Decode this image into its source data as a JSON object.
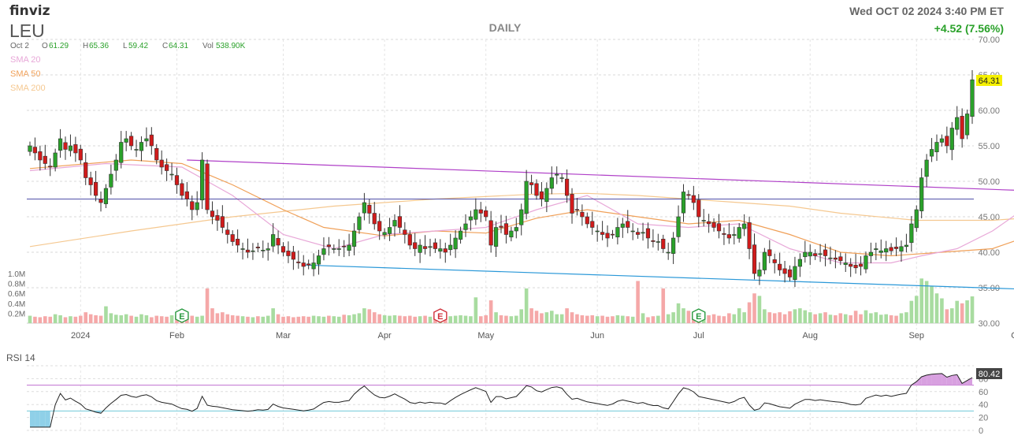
{
  "header": {
    "logo": "finviz",
    "ticker": "LEU",
    "period": "DAILY",
    "datetime": "Wed OCT 02 2024 3:40 PM ET",
    "change": "+4.52 (7.56%)"
  },
  "ohlc": {
    "date_label": "Oct 2",
    "o_label": "O",
    "o_value": "61.29",
    "h_label": "H",
    "h_value": "65.36",
    "l_label": "L",
    "l_value": "59.42",
    "c_label": "C",
    "c_value": "64.31",
    "vol_label": "Vol",
    "vol_value": "538.90K"
  },
  "legend": [
    {
      "label": "SMA 20",
      "color": "#e8a8d8"
    },
    {
      "label": "SMA 50",
      "color": "#f0a058"
    },
    {
      "label": "SMA 200",
      "color": "#f5c890"
    }
  ],
  "last_price_label": "64.31",
  "earnings_marker": "E",
  "rsi": {
    "label": "RSI 14",
    "last": "80.42",
    "ticks": [
      "80",
      "60",
      "40",
      "20",
      "0"
    ]
  },
  "colors": {
    "up": "#2aa12a",
    "down": "#d11b1b",
    "vol_up": "#a8dca0",
    "vol_down": "#f5a8a8",
    "trend_upper": "#b040c8",
    "trend_lower": "#2a98d8",
    "support": "#5050a8",
    "price_box": "#f5f000",
    "change": "#2aa12a",
    "rsi_overbought": "#c070d0",
    "rsi_oversold": "#6fc8d8"
  },
  "chart_data": {
    "type": "candlestick",
    "x_labels": [
      "2024",
      "Feb",
      "Mar",
      "Apr",
      "May",
      "Jun",
      "Jul",
      "Aug",
      "Sep",
      "Oct"
    ],
    "y_ticks": [
      "70.00",
      "65.00",
      "60.00",
      "55.00",
      "50.00",
      "45.00",
      "40.00",
      "35.00",
      "30.00"
    ],
    "ylim": [
      30,
      70
    ],
    "volume_ticks": [
      "1.0M",
      "0.8M",
      "0.6M",
      "0.4M",
      "0.2M"
    ],
    "close": [
      55.0,
      54.0,
      53.0,
      52.5,
      52.0,
      54.0,
      56.0,
      54.5,
      55.0,
      54.0,
      53.0,
      50.5,
      49.5,
      48.0,
      47.0,
      49.0,
      51.0,
      53.0,
      55.5,
      56.0,
      55.0,
      54.5,
      55.5,
      56.0,
      55.0,
      53.0,
      52.0,
      51.5,
      51.0,
      49.5,
      48.0,
      47.5,
      46.0,
      47.0,
      53.0,
      46.0,
      45.0,
      44.5,
      43.5,
      42.5,
      41.5,
      41.0,
      40.5,
      40.0,
      40.2,
      40.6,
      40.3,
      40.5,
      42.5,
      41.0,
      40.0,
      39.5,
      39.0,
      38.5,
      38.0,
      38.2,
      38.5,
      39.5,
      40.5,
      40.8,
      40.5,
      40.5,
      40.8,
      41.0,
      43.0,
      45.0,
      47.0,
      45.5,
      44.0,
      43.0,
      42.8,
      43.5,
      44.5,
      43.5,
      42.5,
      41.0,
      40.5,
      41.0,
      40.5,
      40.8,
      40.5,
      40.5,
      40.0,
      41.0,
      42.0,
      43.0,
      44.0,
      45.0,
      46.0,
      45.5,
      45.0,
      41.0,
      43.5,
      43.5,
      42.5,
      43.0,
      43.5,
      46.0,
      50.0,
      49.5,
      48.0,
      47.5,
      49.0,
      50.5,
      51.0,
      50.5,
      48.0,
      45.5,
      46.0,
      45.0,
      44.0,
      43.5,
      43.0,
      42.5,
      42.0,
      42.5,
      43.5,
      44.0,
      43.5,
      43.0,
      42.5,
      42.8,
      42.0,
      41.5,
      41.5,
      40.5,
      40.0,
      42.0,
      45.0,
      48.5,
      48.0,
      47.0,
      45.0,
      44.5,
      44.0,
      43.5,
      43.0,
      42.5,
      42.0,
      42.5,
      43.5,
      44.0,
      40.5,
      37.0,
      37.5,
      40.0,
      39.5,
      38.5,
      37.5,
      37.0,
      36.5,
      38.0,
      39.0,
      40.0,
      40.0,
      39.5,
      39.8,
      39.5,
      39.2,
      39.0,
      38.8,
      38.5,
      38.0,
      37.8,
      38.0,
      39.5,
      40.0,
      40.5,
      40.2,
      40.5,
      40.2,
      40.5,
      40.8,
      41.0,
      44.0,
      46.0,
      50.5,
      53.0,
      54.5,
      55.5,
      56.0,
      55.0,
      57.5,
      59.0,
      56.0,
      59.5,
      64.31
    ],
    "volume": [
      0.15,
      0.13,
      0.12,
      0.14,
      0.13,
      0.18,
      0.16,
      0.12,
      0.14,
      0.13,
      0.15,
      0.22,
      0.18,
      0.16,
      0.15,
      0.34,
      0.2,
      0.17,
      0.16,
      0.18,
      0.15,
      0.13,
      0.18,
      0.16,
      0.12,
      0.15,
      0.14,
      0.13,
      0.16,
      0.15,
      0.12,
      0.14,
      0.15,
      0.13,
      0.15,
      0.7,
      0.3,
      0.2,
      0.22,
      0.18,
      0.16,
      0.15,
      0.14,
      0.13,
      0.12,
      0.14,
      0.13,
      0.15,
      0.3,
      0.18,
      0.13,
      0.14,
      0.12,
      0.13,
      0.14,
      0.13,
      0.15,
      0.14,
      0.13,
      0.15,
      0.14,
      0.13,
      0.17,
      0.16,
      0.18,
      0.2,
      0.3,
      0.28,
      0.22,
      0.18,
      0.16,
      0.15,
      0.16,
      0.15,
      0.14,
      0.15,
      0.13,
      0.14,
      0.15,
      0.13,
      0.14,
      0.12,
      0.13,
      0.14,
      0.15,
      0.16,
      0.15,
      0.14,
      0.52,
      0.14,
      0.16,
      0.46,
      0.22,
      0.16,
      0.15,
      0.14,
      0.15,
      0.28,
      0.7,
      0.3,
      0.25,
      0.2,
      0.22,
      0.25,
      0.18,
      0.18,
      0.3,
      0.22,
      0.18,
      0.16,
      0.15,
      0.16,
      0.14,
      0.15,
      0.13,
      0.14,
      0.16,
      0.15,
      0.14,
      0.13,
      0.85,
      0.2,
      0.12,
      0.14,
      0.15,
      0.7,
      0.18,
      0.22,
      0.4,
      0.3,
      0.25,
      0.2,
      0.18,
      0.2,
      0.16,
      0.18,
      0.15,
      0.14,
      0.2,
      0.18,
      0.3,
      0.22,
      0.42,
      0.6,
      0.55,
      0.28,
      0.22,
      0.2,
      0.22,
      0.18,
      0.24,
      0.28,
      0.3,
      0.26,
      0.22,
      0.18,
      0.2,
      0.22,
      0.17,
      0.16,
      0.2,
      0.18,
      0.16,
      0.25,
      0.18,
      0.26,
      0.2,
      0.22,
      0.17,
      0.18,
      0.16,
      0.15,
      0.2,
      0.22,
      0.45,
      0.55,
      0.9,
      0.85,
      0.75,
      0.6,
      0.5,
      0.28,
      0.3,
      0.45,
      0.4,
      0.46,
      0.54
    ],
    "sma20": [
      [
        0,
        51.5
      ],
      [
        15,
        52.5
      ],
      [
        30,
        52.0
      ],
      [
        40,
        48.0
      ],
      [
        50,
        42.5
      ],
      [
        60,
        40.5
      ],
      [
        70,
        42.5
      ],
      [
        80,
        43.0
      ],
      [
        90,
        43.5
      ],
      [
        100,
        46.0
      ],
      [
        110,
        48.0
      ],
      [
        120,
        44.0
      ],
      [
        130,
        43.5
      ],
      [
        140,
        44.0
      ],
      [
        150,
        40.5
      ],
      [
        160,
        38.5
      ],
      [
        170,
        38.5
      ],
      [
        176,
        39.5
      ],
      [
        183,
        40.5
      ],
      [
        190,
        43.0
      ],
      [
        196,
        46.0
      ]
    ],
    "sma50": [
      [
        0,
        51.8
      ],
      [
        20,
        53.0
      ],
      [
        30,
        52.5
      ],
      [
        40,
        49.5
      ],
      [
        50,
        46.0
      ],
      [
        58,
        43.5
      ],
      [
        70,
        42.3
      ],
      [
        80,
        43.0
      ],
      [
        90,
        42.7
      ],
      [
        100,
        44.8
      ],
      [
        110,
        46.0
      ],
      [
        120,
        45.0
      ],
      [
        130,
        44.0
      ],
      [
        140,
        44.5
      ],
      [
        150,
        42.5
      ],
      [
        160,
        40.0
      ],
      [
        170,
        39.5
      ],
      [
        180,
        40.0
      ],
      [
        190,
        40.5
      ],
      [
        196,
        42.0
      ]
    ],
    "sma200": [
      [
        0,
        40.8
      ],
      [
        20,
        43.0
      ],
      [
        40,
        45.0
      ],
      [
        60,
        46.5
      ],
      [
        80,
        47.5
      ],
      [
        100,
        48.2
      ],
      [
        110,
        48.3
      ],
      [
        120,
        48.0
      ],
      [
        130,
        47.5
      ],
      [
        140,
        47.0
      ],
      [
        150,
        46.5
      ],
      [
        160,
        45.5
      ],
      [
        175,
        44.5
      ],
      [
        190,
        44.5
      ],
      [
        196,
        44.8
      ]
    ],
    "trend_upper": [
      [
        31,
        53.0
      ],
      [
        196,
        48.7
      ]
    ],
    "trend_lower": [
      [
        54,
        38.2
      ],
      [
        196,
        34.8
      ]
    ],
    "support_level": 47.5,
    "earnings_days": [
      30,
      81,
      132
    ],
    "earnings_kinds": [
      "up",
      "down",
      "up"
    ],
    "rsi_ylim": [
      0,
      100
    ],
    "rsi_overbought": 70,
    "rsi_oversold": 30
  }
}
